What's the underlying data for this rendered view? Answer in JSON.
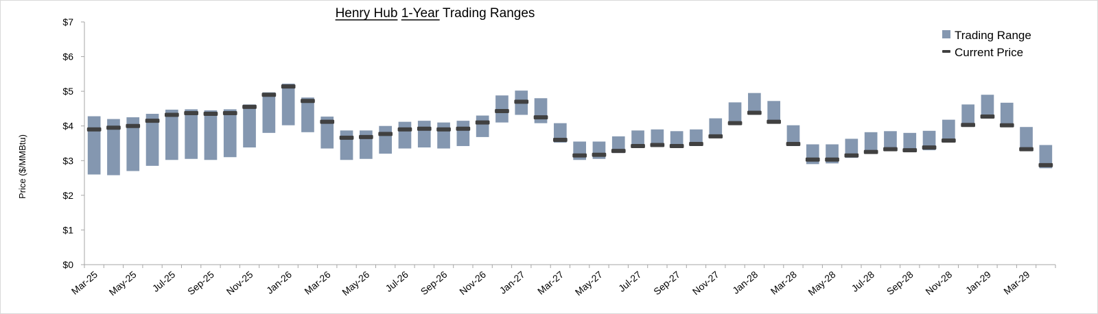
{
  "chart_data": {
    "type": "bar",
    "title_parts": [
      "Henry Hub",
      " ",
      "1-Year",
      " Trading Ranges"
    ],
    "ylabel": "Price ($/MMBtu)",
    "xlabel": "",
    "ylim": [
      0,
      7
    ],
    "y_ticks": [
      "$0",
      "$1",
      "$2",
      "$3",
      "$4",
      "$5",
      "$6",
      "$7"
    ],
    "grid": false,
    "legend_position": "top-right",
    "legend": {
      "range_label": "Trading Range",
      "current_label": "Current Price"
    },
    "colors": {
      "range": "#8497b0",
      "current": "#404040",
      "axis": "#a6a6a6"
    },
    "x_tick_labels": [
      "Mar-25",
      "May-25",
      "Jul-25",
      "Sep-25",
      "Nov-25",
      "Jan-26",
      "Mar-26",
      "May-26",
      "Jul-26",
      "Sep-26",
      "Nov-26",
      "Jan-27",
      "Mar-27",
      "May-27",
      "Jul-27",
      "Sep-27",
      "Nov-27",
      "Jan-28",
      "Mar-28",
      "May-28",
      "Jul-28",
      "Sep-28",
      "Nov-28",
      "Jan-29",
      "Mar-29"
    ],
    "categories": [
      "Mar-25",
      "Apr-25",
      "May-25",
      "Jun-25",
      "Jul-25",
      "Aug-25",
      "Sep-25",
      "Oct-25",
      "Nov-25",
      "Dec-25",
      "Jan-26",
      "Feb-26",
      "Mar-26",
      "Apr-26",
      "May-26",
      "Jun-26",
      "Jul-26",
      "Aug-26",
      "Sep-26",
      "Oct-26",
      "Nov-26",
      "Dec-26",
      "Jan-27",
      "Feb-27",
      "Mar-27",
      "Apr-27",
      "May-27",
      "Jun-27",
      "Jul-27",
      "Aug-27",
      "Sep-27",
      "Oct-27",
      "Nov-27",
      "Dec-27",
      "Jan-28",
      "Feb-28",
      "Mar-28",
      "Apr-28",
      "May-28",
      "Jun-28",
      "Jul-28",
      "Aug-28",
      "Sep-28",
      "Oct-28",
      "Nov-28",
      "Dec-28",
      "Jan-29",
      "Feb-29",
      "Mar-29",
      "Apr-29"
    ],
    "series": [
      {
        "name": "Trading Range",
        "low": [
          2.6,
          2.58,
          2.7,
          2.85,
          3.02,
          3.05,
          3.02,
          3.1,
          3.38,
          3.8,
          4.02,
          3.82,
          3.35,
          3.02,
          3.05,
          3.2,
          3.35,
          3.38,
          3.35,
          3.42,
          3.68,
          4.1,
          4.32,
          4.08,
          3.52,
          3.02,
          3.05,
          3.22,
          3.38,
          3.4,
          3.38,
          3.45,
          3.68,
          4.05,
          4.32,
          4.08,
          3.42,
          2.9,
          2.92,
          3.08,
          3.22,
          3.28,
          3.25,
          3.3,
          3.58,
          4.02,
          4.25,
          3.98,
          3.28,
          2.78
        ],
        "high": [
          4.28,
          4.2,
          4.25,
          4.35,
          4.47,
          4.48,
          4.45,
          4.48,
          4.62,
          4.97,
          5.22,
          4.82,
          4.27,
          3.87,
          3.87,
          4.0,
          4.12,
          4.15,
          4.1,
          4.15,
          4.3,
          4.88,
          5.02,
          4.8,
          4.08,
          3.55,
          3.55,
          3.7,
          3.87,
          3.9,
          3.85,
          3.9,
          4.22,
          4.68,
          4.95,
          4.72,
          4.02,
          3.47,
          3.47,
          3.63,
          3.82,
          3.85,
          3.8,
          3.86,
          4.18,
          4.62,
          4.9,
          4.67,
          3.97,
          3.45
        ]
      },
      {
        "name": "Current Price",
        "values": [
          3.9,
          3.95,
          4.0,
          4.15,
          4.32,
          4.37,
          4.35,
          4.37,
          4.55,
          4.9,
          5.14,
          4.72,
          4.12,
          3.66,
          3.68,
          3.77,
          3.9,
          3.92,
          3.9,
          3.92,
          4.1,
          4.43,
          4.7,
          4.25,
          3.6,
          3.15,
          3.17,
          3.28,
          3.42,
          3.45,
          3.42,
          3.48,
          3.7,
          4.08,
          4.38,
          4.12,
          3.48,
          3.03,
          3.03,
          3.15,
          3.25,
          3.33,
          3.3,
          3.38,
          3.58,
          4.03,
          4.27,
          4.02,
          3.33,
          2.87
        ]
      }
    ]
  }
}
